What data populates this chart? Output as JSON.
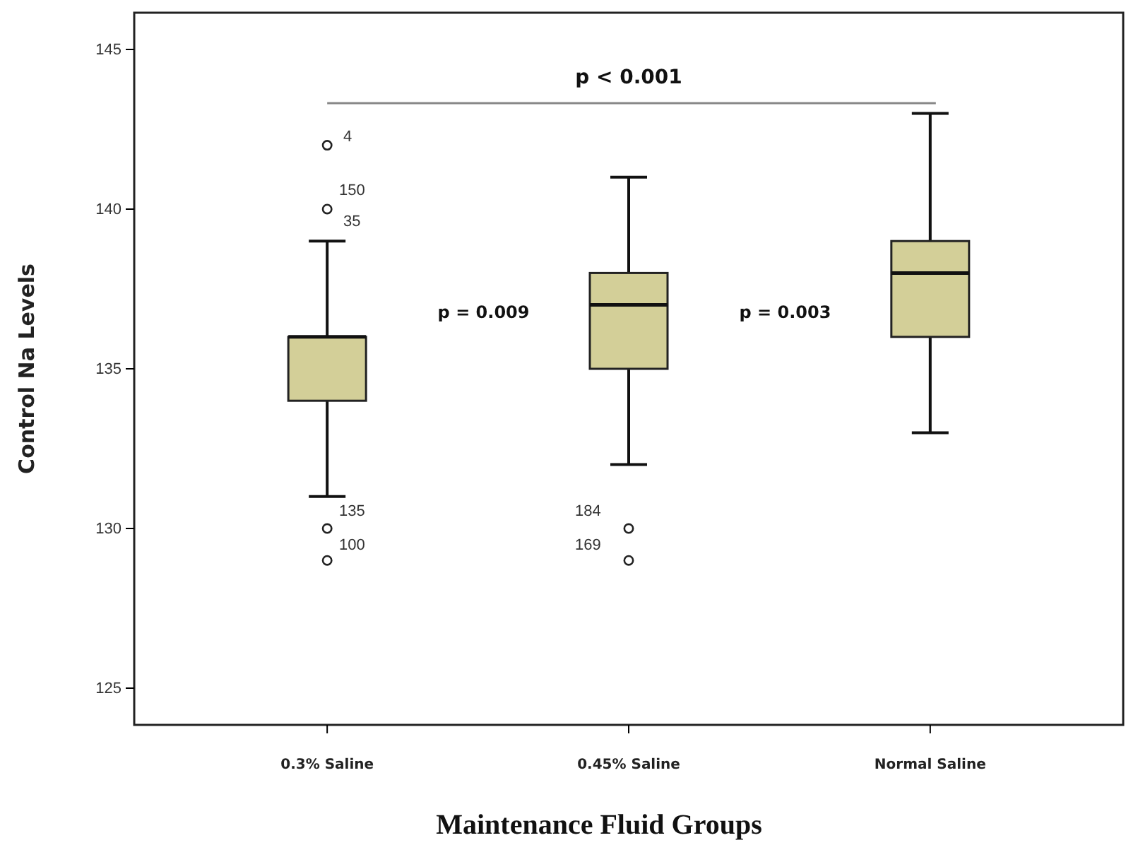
{
  "chart_data": {
    "type": "box",
    "xlabel": "Maintenance Fluid Groups",
    "ylabel": "Control Na Levels",
    "categories": [
      "0.3% Saline",
      "0.45% Saline",
      "Normal Saline"
    ],
    "series": [
      {
        "color": "#d3cf98",
        "boxes": [
          {
            "low": 131,
            "q1": 134,
            "median": 136,
            "q3": 136,
            "high": 139,
            "outliers": [
              142,
              140,
              130,
              129
            ]
          },
          {
            "low": 132,
            "q1": 135,
            "median": 137,
            "q3": 138,
            "high": 141,
            "outliers": [
              130,
              129
            ]
          },
          {
            "low": 133,
            "q1": 136,
            "median": 138,
            "q3": 139,
            "high": 143
          }
        ]
      }
    ],
    "ylim": [
      123.85,
      146.15
    ],
    "yticks": [
      125,
      130,
      135,
      140,
      145
    ],
    "grid": false,
    "marker": "circle",
    "annotations": [
      "p < 0.001",
      "p = 0.009",
      "p = 0.003",
      "4",
      "150",
      "35",
      "135",
      "100",
      "184",
      "169"
    ]
  }
}
